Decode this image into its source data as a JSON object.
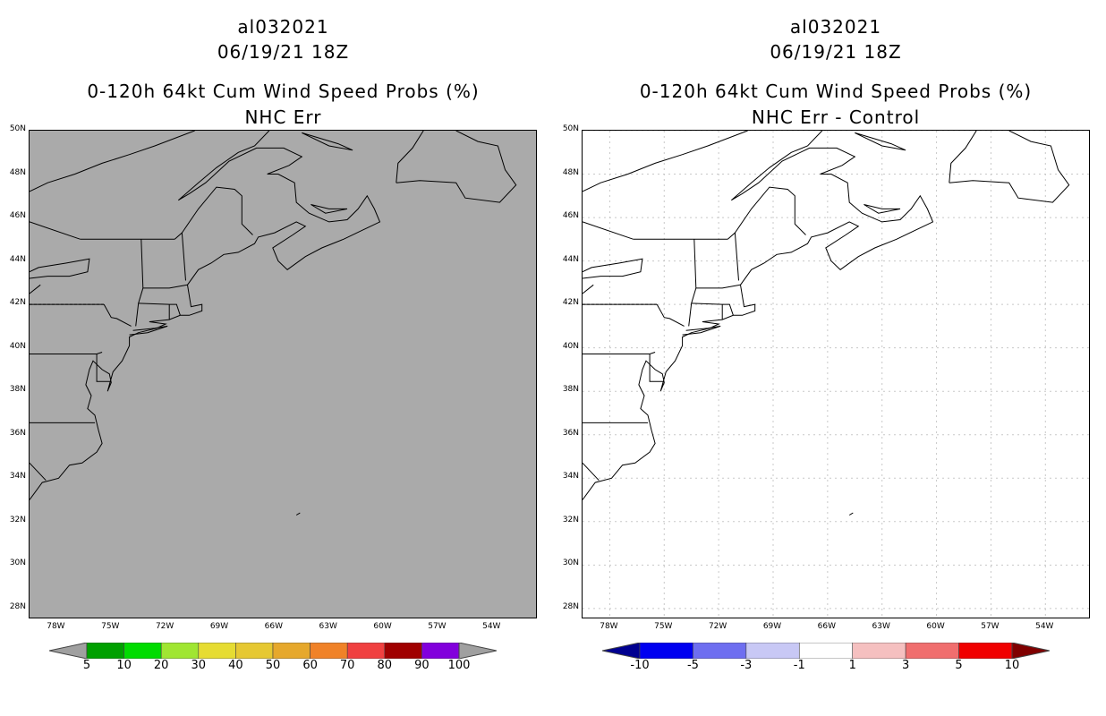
{
  "left": {
    "storm_id": "al032021",
    "datetime": "06/19/21 18Z",
    "product": "0-120h 64kt Cum Wind Speed Probs (%)",
    "subtitle": "NHC Err",
    "background": "#aaaaaa",
    "colorbar": {
      "colors": [
        "#00a000",
        "#00dc00",
        "#a0e632",
        "#e6dc32",
        "#e6c832",
        "#e6a82c",
        "#f08228",
        "#f04040",
        "#a00000",
        "#8200dc"
      ],
      "labels": [
        "5",
        "10",
        "20",
        "30",
        "40",
        "50",
        "60",
        "70",
        "80",
        "90",
        "100"
      ],
      "left_arrow": "#a0a0a0",
      "right_arrow": "#a0a0a0"
    }
  },
  "right": {
    "storm_id": "al032021",
    "datetime": "06/19/21 18Z",
    "product": "0-120h 64kt Cum Wind Speed Probs (%)",
    "subtitle": "NHC Err - Control",
    "background": "#ffffff",
    "colorbar": {
      "colors": [
        "#0000f0",
        "#6e6ef0",
        "#c8c8f5",
        "#ffffff",
        "#f5c0c0",
        "#f06e6e",
        "#f00000"
      ],
      "labels": [
        "-10",
        "-5",
        "-3",
        "-1",
        "1",
        "3",
        "5",
        "10"
      ],
      "left_arrow": "#000090",
      "right_arrow": "#800000"
    }
  },
  "lat_labels": [
    "50N",
    "48N",
    "46N",
    "44N",
    "42N",
    "40N",
    "38N",
    "36N",
    "34N",
    "32N",
    "30N",
    "28N"
  ],
  "lat_values": [
    50,
    48,
    46,
    44,
    42,
    40,
    38,
    36,
    34,
    32,
    30,
    28
  ],
  "lon_labels": [
    "78W",
    "75W",
    "72W",
    "69W",
    "66W",
    "63W",
    "60W",
    "57W",
    "54W"
  ],
  "lon_values": [
    -78,
    -75,
    -72,
    -69,
    -66,
    -63,
    -60,
    -57,
    -54
  ]
}
